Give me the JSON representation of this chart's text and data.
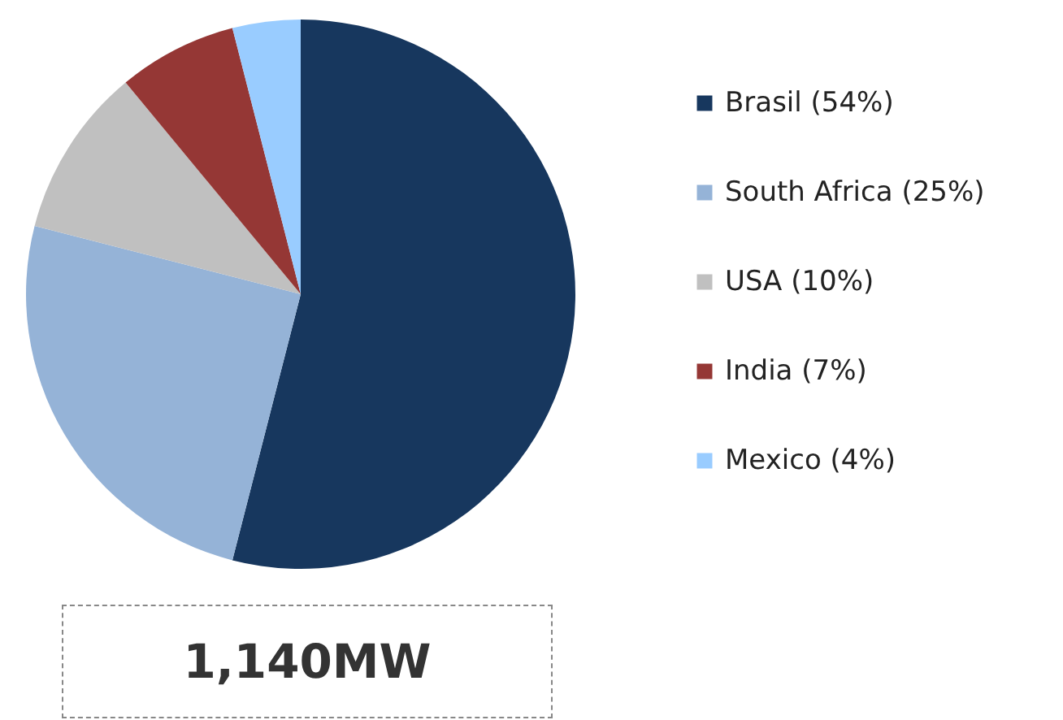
{
  "chart_data": {
    "type": "pie",
    "categories": [
      "Brasil (54%)",
      "South Africa (25%)",
      "USA (10%)",
      "India (7%)",
      "Mexico (4%)"
    ],
    "values": [
      54,
      25,
      10,
      7,
      4
    ],
    "colors": [
      "#17375e",
      "#95b3d7",
      "#c0c0c0",
      "#953735",
      "#99ccff"
    ],
    "legend": "right",
    "annotations": [
      "1,140MW"
    ]
  }
}
